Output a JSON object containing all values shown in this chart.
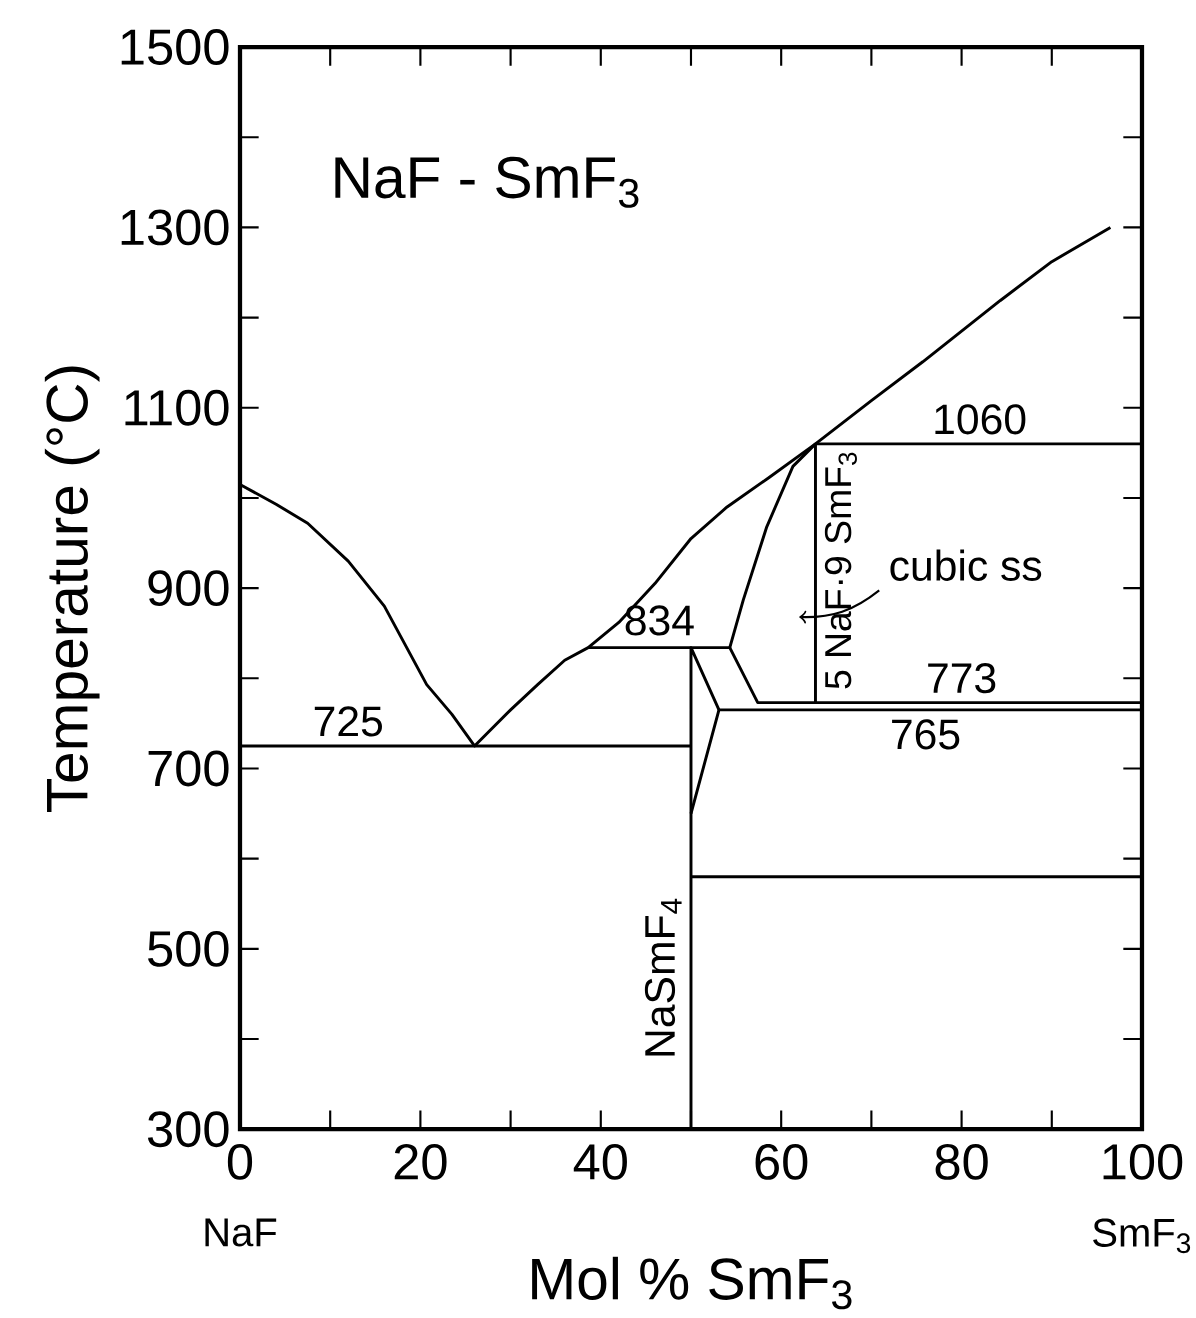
{
  "chart_data": {
    "type": "line",
    "title": "NaF - SmF$_{3}$",
    "xlabel": "Mol % SmF$_{3}$",
    "ylabel": "Temperature (°C)",
    "xlim": [
      0,
      100
    ],
    "ylim": [
      300,
      1500
    ],
    "xticks": [
      0,
      {
        "value": 10,
        "label": null
      },
      20,
      {
        "value": 30,
        "label": null
      },
      40,
      {
        "value": 50,
        "label": null
      },
      60,
      {
        "value": 70,
        "label": null
      },
      80,
      {
        "value": 90,
        "label": null
      },
      100
    ],
    "yticks": [
      300,
      {
        "value": 400,
        "label": null
      },
      500,
      {
        "value": 600,
        "label": null
      },
      700,
      {
        "value": 800,
        "label": null
      },
      900,
      {
        "value": 1000,
        "label": null
      },
      1100,
      {
        "value": 1200,
        "label": null
      },
      1300,
      {
        "value": 1400,
        "label": null
      },
      1500
    ],
    "series": [
      {
        "color": "#000000",
        "x": [
          0,
          4,
          7.5,
          12,
          16,
          20.7,
          23.5,
          26,
          30,
          33,
          36,
          38.6,
          42,
          46,
          50,
          54,
          58.7,
          63.8,
          70,
          75.7,
          84.3,
          90,
          96.5
        ],
        "values": [
          1015,
          993,
          972,
          930,
          880,
          793,
          760,
          725,
          765,
          793,
          820,
          834,
          862,
          905,
          955,
          990,
          1023,
          1060,
          1108,
          1151,
          1219,
          1262,
          1300
        ]
      },
      {
        "color": "#000000",
        "x": [
          0,
          50
        ],
        "values": [
          725,
          725
        ]
      },
      {
        "color": "#000000",
        "x": [
          38.6,
          54.3,
          57.4,
          100
        ],
        "values": [
          834,
          834,
          773,
          773
        ]
      },
      {
        "color": "#000000",
        "x": [
          50,
          50,
          53.1
        ],
        "values": [
          300,
          834,
          765
        ]
      },
      {
        "color": "#000000",
        "x": [
          50,
          53.1,
          100
        ],
        "values": [
          650,
          765,
          765
        ]
      },
      {
        "color": "#000000",
        "x": [
          54.3,
          55.8,
          58.4,
          61.3,
          63.8,
          100
        ],
        "values": [
          834,
          887,
          968,
          1035,
          1060,
          1060
        ]
      },
      {
        "color": "#000000",
        "x": [
          63.8,
          63.8
        ],
        "values": [
          773,
          1060
        ]
      },
      {
        "color": "#000000",
        "x": [
          50,
          100
        ],
        "values": [
          580,
          580
        ]
      }
    ],
    "annotations": [
      {
        "text": "725",
        "x": 12,
        "y": 725
      },
      {
        "text": "834",
        "x": 46.5,
        "y": 834
      },
      {
        "text": "1060",
        "x": 82,
        "y": 1060
      },
      {
        "text": "773",
        "x": 80,
        "y": 773
      },
      {
        "text": "765",
        "x": 76,
        "y": 765
      },
      "NaSmF$_{4}$",
      {
        "text": "5 NaF·9 SmF$_{3}$",
        "x": 63.8,
        "y": 920
      },
      {
        "text": "cubic ss",
        "x": 62,
        "y": 868
      },
      "NaF",
      "SmF$_{3}$"
    ]
  }
}
